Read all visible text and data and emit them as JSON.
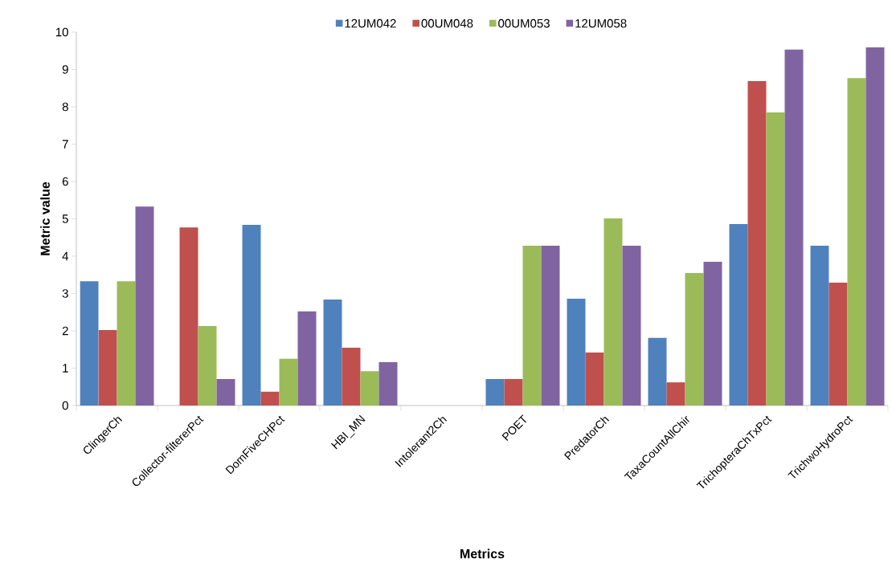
{
  "chart_data": {
    "type": "bar",
    "xlabel": "Metrics",
    "ylabel": "Metric value",
    "categories": [
      "ClingerCh",
      "Collector-filtererPct",
      "DomFiveCHPct",
      "HBI_MN",
      "Intolerant2Ch",
      "POET",
      "PredatorCh",
      "TaxaCountAllChir",
      "TrichopteraChTxPct",
      "TrichwoHydroPct"
    ],
    "series": [
      {
        "name": "12UM042",
        "color": "#4f81bd",
        "values": [
          3.33,
          0,
          4.84,
          2.84,
          0,
          0.71,
          2.86,
          1.81,
          4.86,
          4.28
        ]
      },
      {
        "name": "00UM048",
        "color": "#c0504d",
        "values": [
          2.02,
          4.77,
          0.37,
          1.55,
          0,
          0.71,
          1.42,
          0.62,
          8.69,
          3.29
        ]
      },
      {
        "name": "00UM053",
        "color": "#9bbb59",
        "values": [
          3.33,
          2.13,
          1.25,
          0.92,
          0,
          4.28,
          5.01,
          3.55,
          7.85,
          8.77
        ]
      },
      {
        "name": "12UM058",
        "color": "#8064a2",
        "values": [
          5.33,
          0.71,
          2.52,
          1.16,
          0,
          4.28,
          4.28,
          3.85,
          9.53,
          9.59
        ]
      }
    ],
    "ylim": [
      0,
      10
    ],
    "yticks": [
      0,
      1,
      2,
      3,
      4,
      5,
      6,
      7,
      8,
      9,
      10
    ],
    "legend": "top",
    "grid": false
  }
}
